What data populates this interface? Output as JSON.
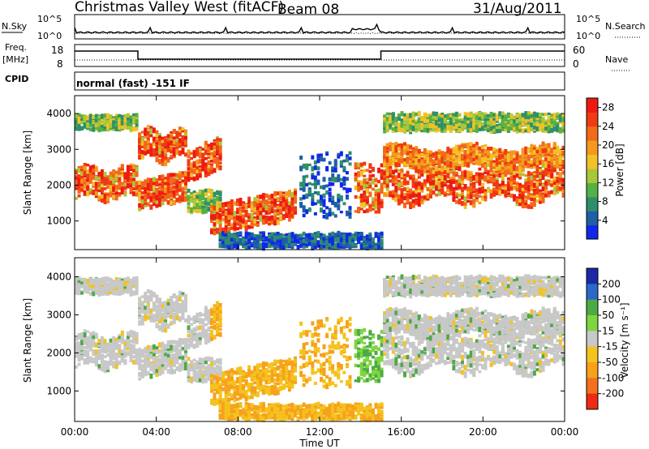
{
  "header": {
    "station": "Christmas Valley West (fitACF)",
    "beam": "Beam 08",
    "date": "31/Aug/2011"
  },
  "left_labels": {
    "nsky": "N.Sky",
    "freq": "Freq.",
    "mhz": "[MHz]",
    "cpid": "CPID"
  },
  "right_labels": {
    "nsearch": "N.Search",
    "nave": "Nave"
  },
  "cpid_text": "normal (fast) -151 IF",
  "colors": {
    "power": [
      "#1028e8",
      "#1f5fa8",
      "#2e8f6a",
      "#55b045",
      "#a8c83a",
      "#f2c227",
      "#f39a1d",
      "#f26a1a",
      "#f03a12",
      "#ee1a10"
    ],
    "velocity": [
      "#1a2aa6",
      "#2d67c9",
      "#4caa46",
      "#7ed63f",
      "#c8c8c8",
      "#f4c31e",
      "#f7a11c",
      "#f3711b",
      "#ee2a14"
    ]
  },
  "chart_data": [
    {
      "type": "line",
      "name": "noise",
      "ylabels": [
        "10^5",
        "10^0"
      ],
      "right_ylabels": [
        "10^5",
        "10^0"
      ],
      "legend": [
        "N.Sky",
        "N.Search"
      ]
    },
    {
      "type": "line",
      "name": "frequency-nave",
      "left_yticks": [
        "18",
        "8"
      ],
      "right_yticks": [
        "60",
        "0"
      ],
      "freq_steps": [
        {
          "t_start_hr": 0,
          "t_end_hr": 3.1,
          "level": "high"
        },
        {
          "t_start_hr": 3.1,
          "t_end_hr": 15.0,
          "level": "low"
        },
        {
          "t_start_hr": 15.0,
          "t_end_hr": 24.0,
          "level": "high"
        }
      ]
    },
    {
      "type": "heatmap",
      "name": "power",
      "xlabel": "",
      "ylabel": "Slant Range [km]",
      "yticks": [
        "1000",
        "2000",
        "3000",
        "4000"
      ],
      "ylim": [
        200,
        4500
      ],
      "colorbar_label": "Power [dB]",
      "colorbar_ticks": [
        "4",
        "8",
        "12",
        "16",
        "20",
        "24",
        "28"
      ],
      "colorbar_range": [
        0,
        30
      ]
    },
    {
      "type": "heatmap",
      "name": "velocity",
      "xlabel": "Time UT",
      "ylabel": "Slant Range [km]",
      "yticks": [
        "1000",
        "2000",
        "3000",
        "4000"
      ],
      "ylim": [
        200,
        4500
      ],
      "xticks": [
        "00:00",
        "04:00",
        "08:00",
        "12:00",
        "16:00",
        "20:00",
        "00:00"
      ],
      "colorbar_label": "Velocity [m s⁻¹]",
      "colorbar_ticks": [
        "200",
        "100",
        "50",
        "15",
        "-15",
        "-50",
        "-100",
        "-200"
      ]
    }
  ]
}
